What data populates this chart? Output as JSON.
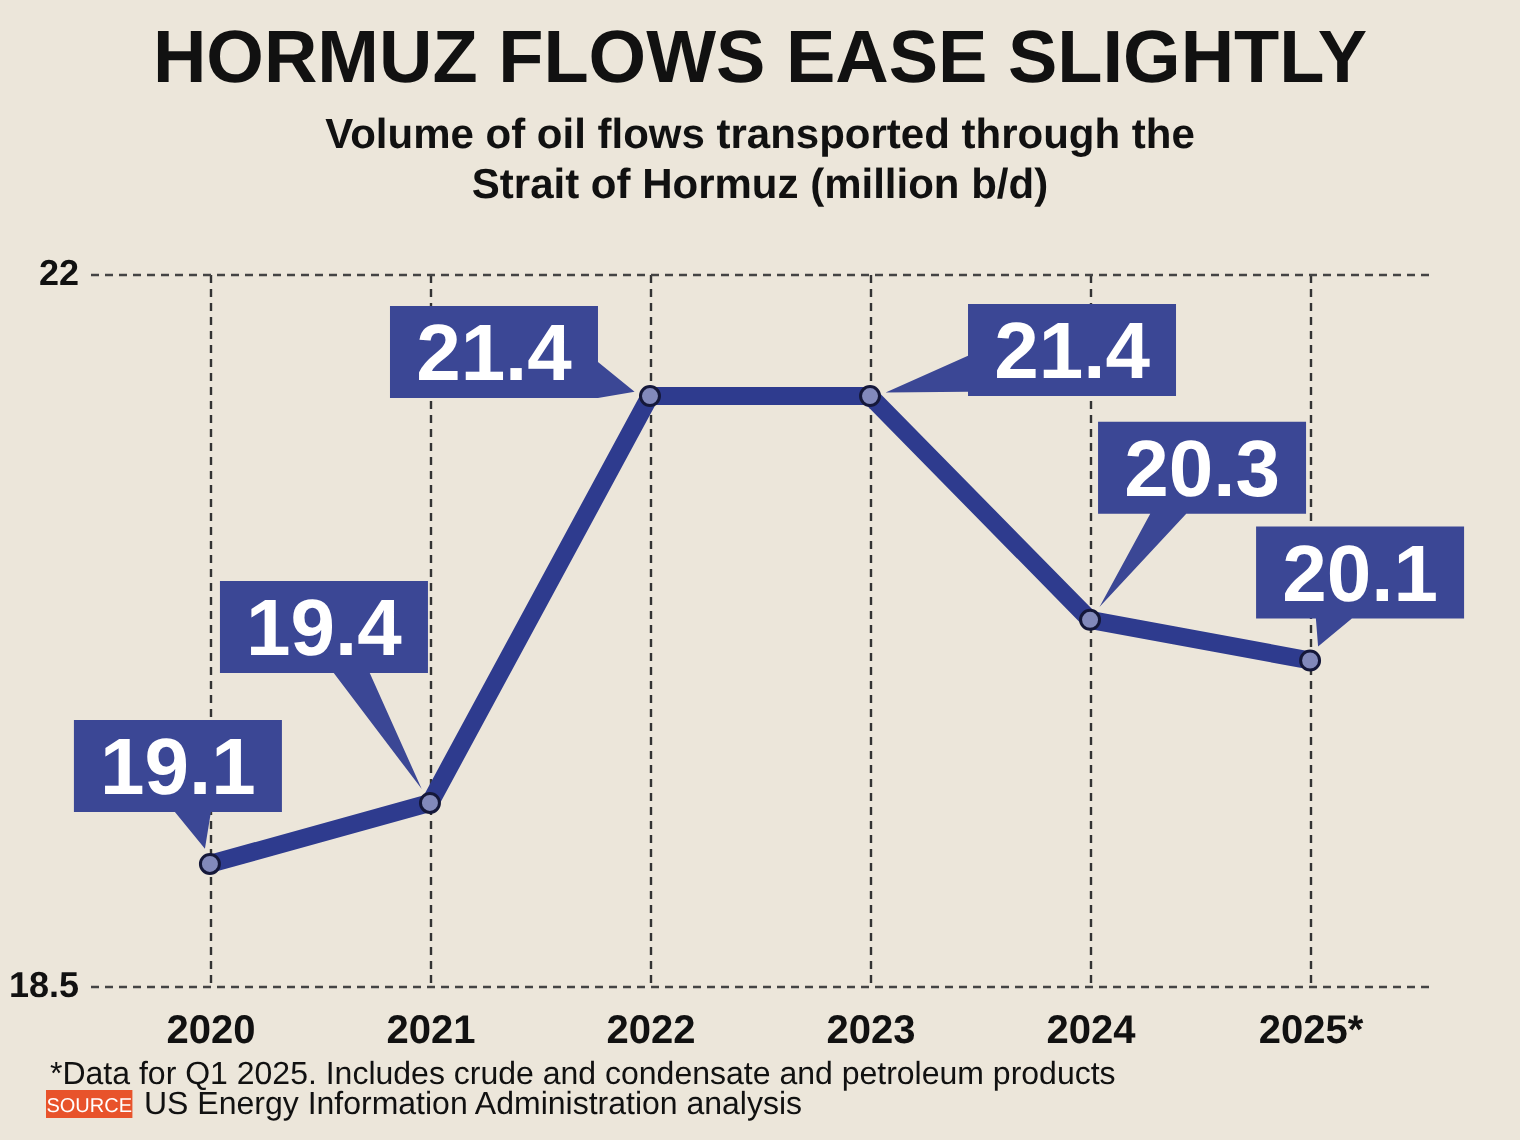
{
  "chart_data": {
    "type": "line",
    "title": "HORMUZ FLOWS EASE SLIGHTLY",
    "subtitle": "Volume of oil flows transported through the\nStrait of Hormuz (million b/d)",
    "categories": [
      "2020",
      "2021",
      "2022",
      "2023",
      "2024",
      "2025*"
    ],
    "series": [
      {
        "color": "#2e3b8e",
        "values": [
          19.1,
          19.4,
          21.4,
          21.4,
          20.3,
          20.1
        ]
      }
    ],
    "ylim": [
      18.5,
      22
    ],
    "yticks": [
      18.5,
      22
    ],
    "grid": true,
    "marker": "circle",
    "data_labels": true,
    "annotations": [
      "*Data for Q1 2025. Includes crude and condensate and petroleum products",
      "SOURCE",
      "US Energy Information Administration analysis"
    ]
  }
}
